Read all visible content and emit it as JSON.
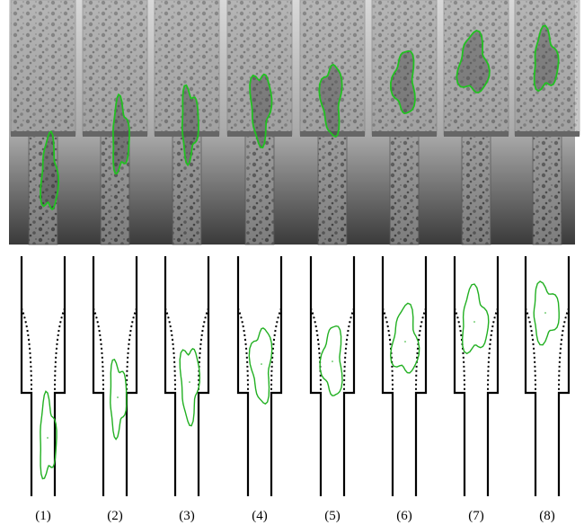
{
  "panels": [
    {
      "label": "(1)"
    },
    {
      "label": "(2)"
    },
    {
      "label": "(3)"
    },
    {
      "label": "(4)"
    },
    {
      "label": "(5)"
    },
    {
      "label": "(6)"
    },
    {
      "label": "(7)"
    },
    {
      "label": "(8)"
    }
  ]
}
